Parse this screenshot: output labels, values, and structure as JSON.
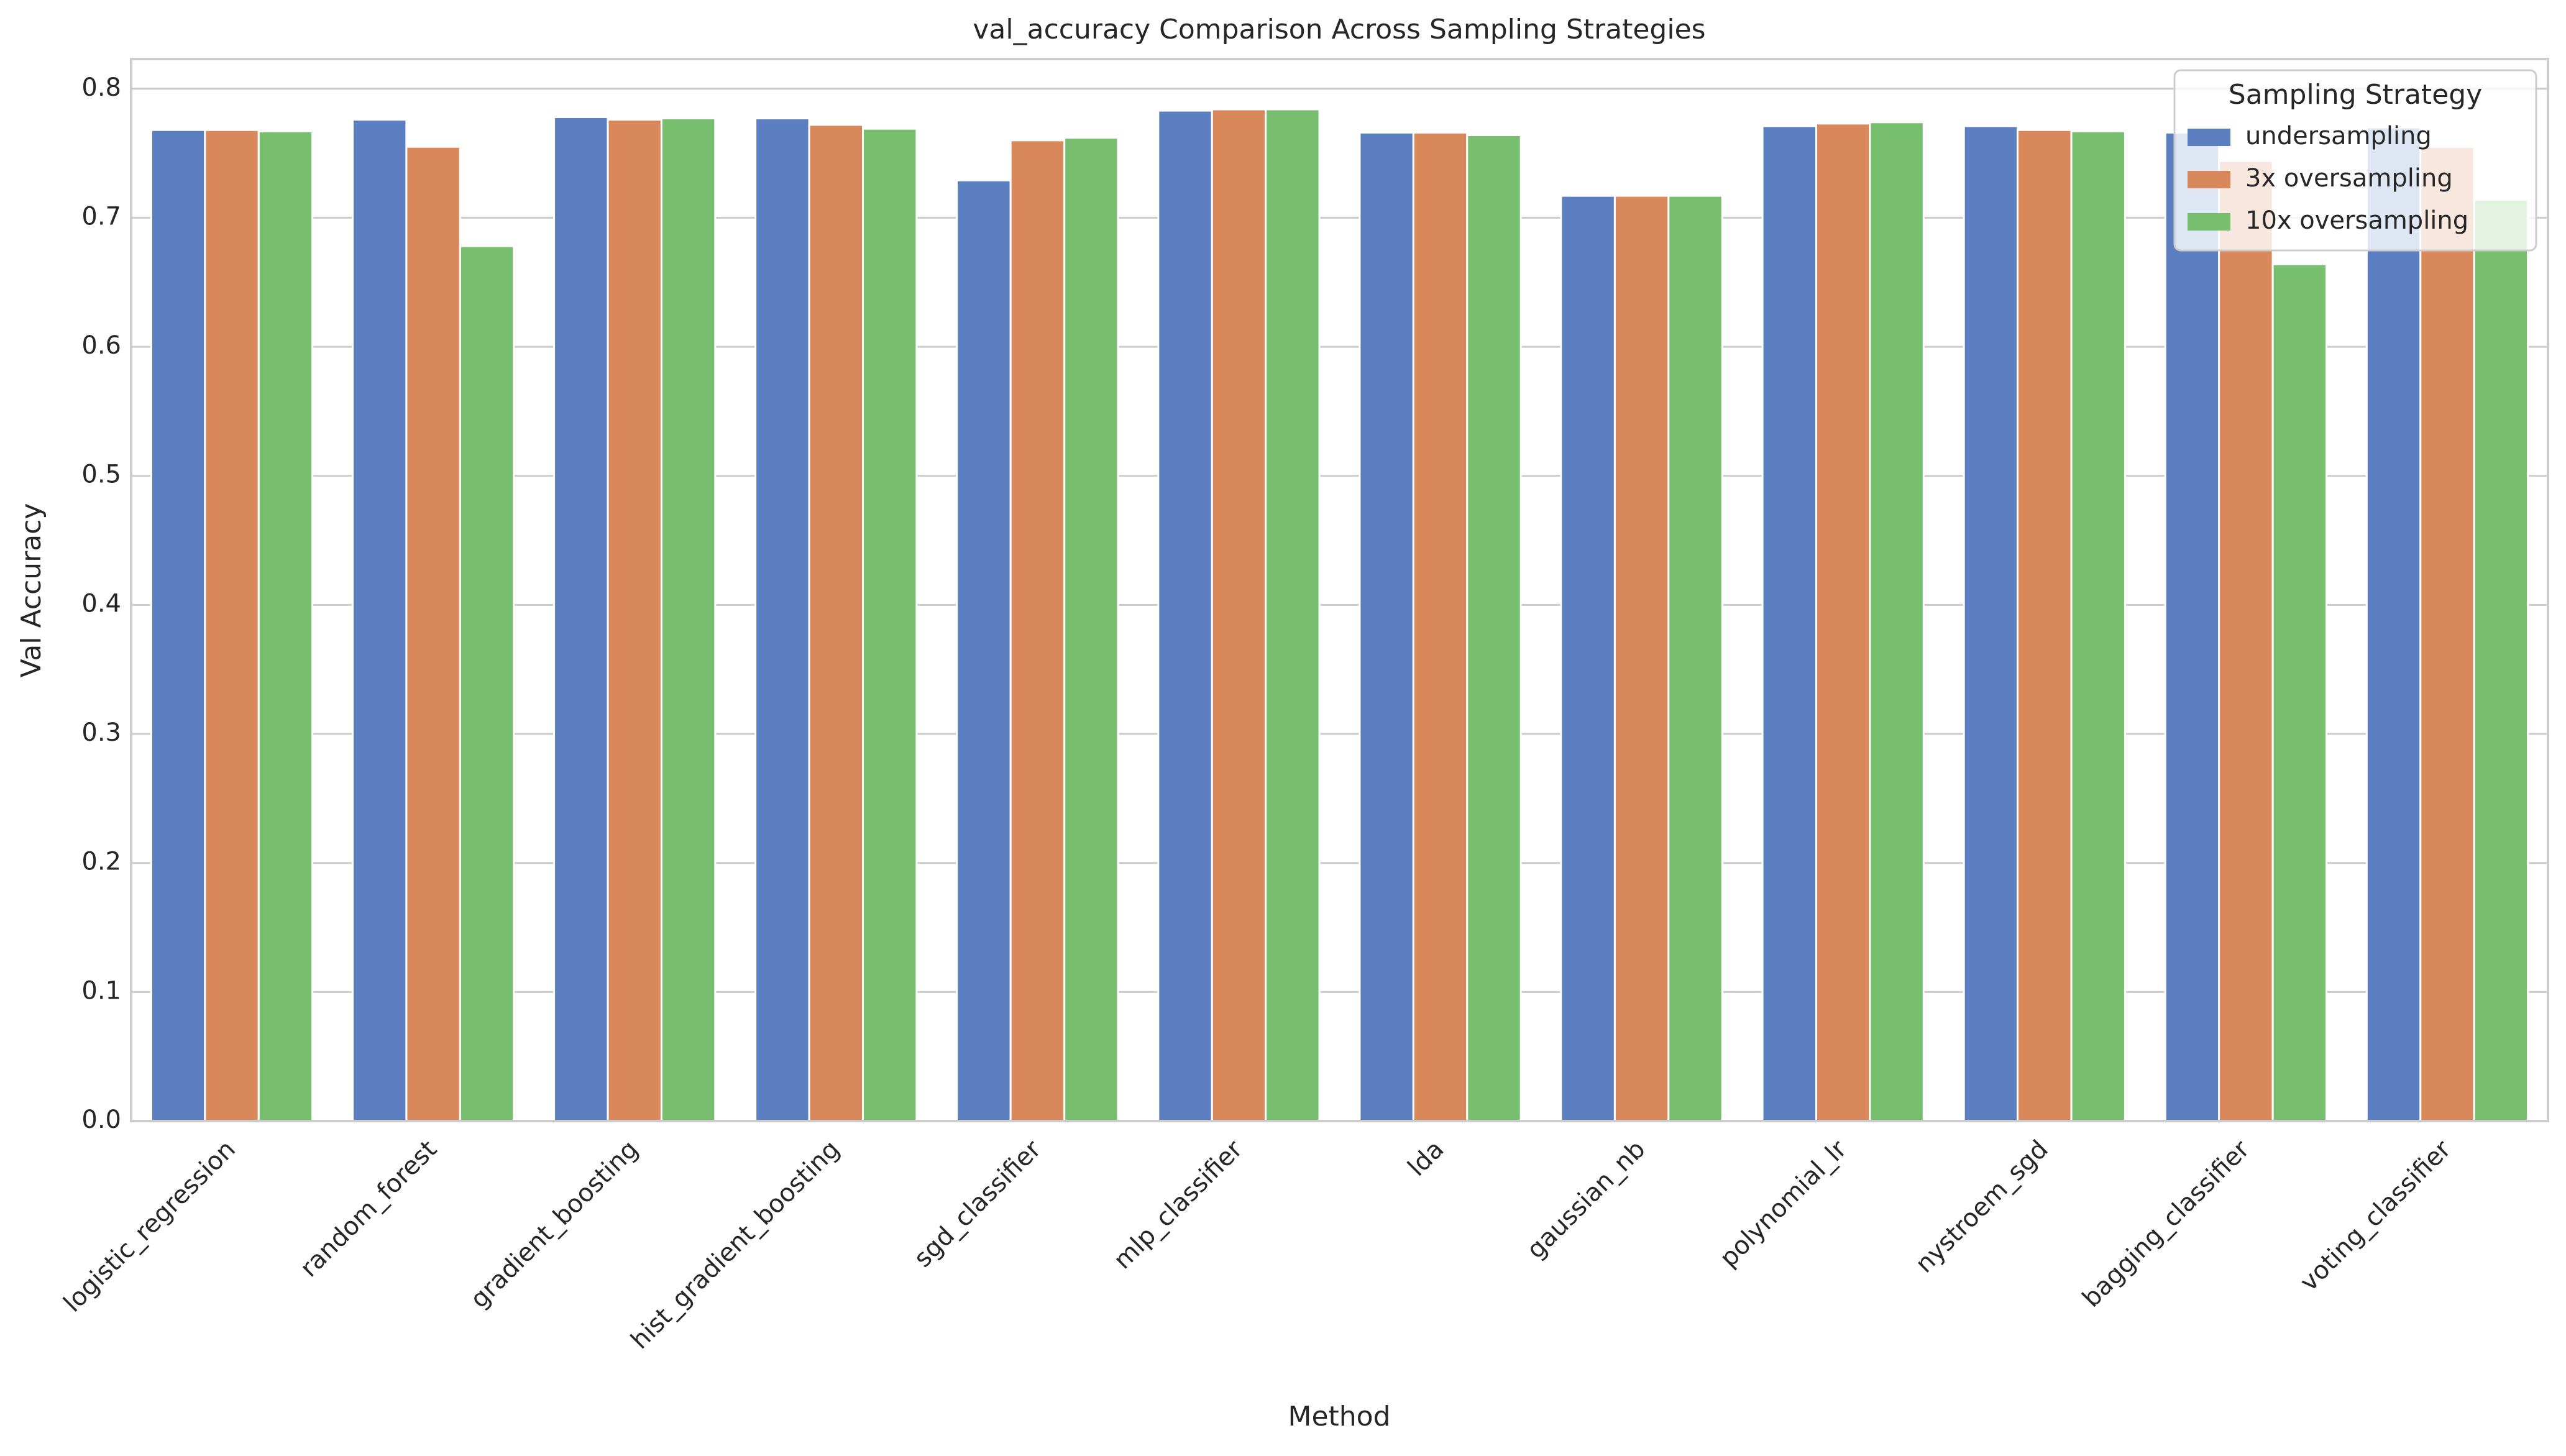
{
  "chart_data": {
    "type": "bar",
    "title": "val_accuracy Comparison Across Sampling Strategies",
    "x_label": "Method",
    "y_label": "Val Accuracy",
    "categories": [
      "logistic_regression",
      "random_forest",
      "gradient_boosting",
      "hist_gradient_boosting",
      "sgd_classifier",
      "mlp_classifier",
      "lda",
      "gaussian_nb",
      "polynomial_lr",
      "nystroem_sgd",
      "bagging_classifier",
      "voting_classifier"
    ],
    "series": [
      {
        "name": "undersampling",
        "color": "#5b7ec1",
        "values": [
          0.768,
          0.776,
          0.778,
          0.777,
          0.729,
          0.783,
          0.766,
          0.717,
          0.771,
          0.771,
          0.766,
          0.77
        ]
      },
      {
        "name": "3x oversampling",
        "color": "#d8885b",
        "values": [
          0.768,
          0.755,
          0.776,
          0.772,
          0.76,
          0.784,
          0.766,
          0.717,
          0.773,
          0.768,
          0.744,
          0.755
        ]
      },
      {
        "name": "10x oversampling",
        "color": "#77bf6e",
        "values": [
          0.767,
          0.678,
          0.777,
          0.769,
          0.762,
          0.784,
          0.764,
          0.717,
          0.774,
          0.767,
          0.664,
          0.714
        ]
      }
    ],
    "legend_title": "Sampling Strategy",
    "legend_loc": "upper right",
    "ylim": [
      0,
      0.823
    ],
    "yticks": [
      {
        "value": 0,
        "label": "0.0"
      },
      0.1,
      0.2,
      0.3,
      0.4,
      0.5,
      0.6,
      0.7,
      0.8
    ],
    "grid": true
  }
}
